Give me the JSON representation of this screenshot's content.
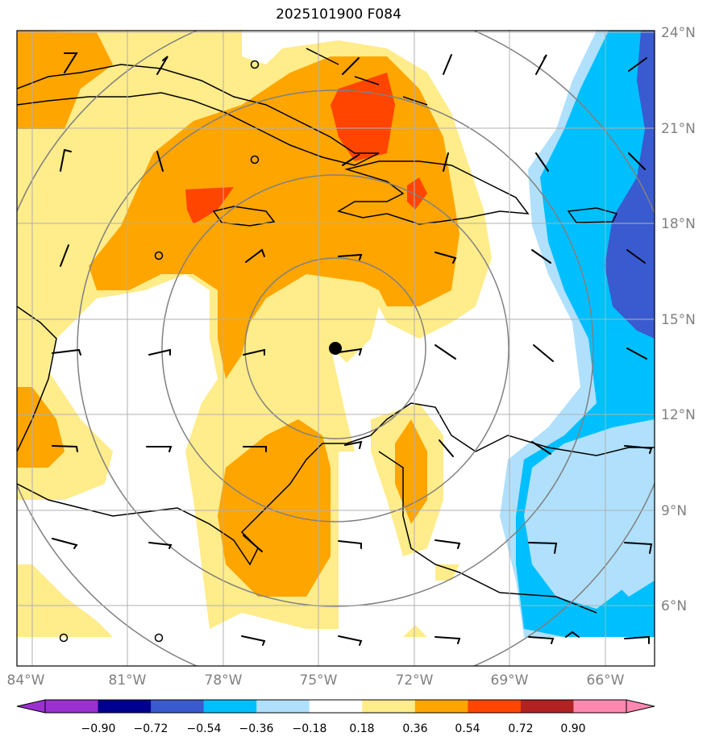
{
  "title": "2025101900 F084",
  "lon_labels": [
    "84°W",
    "81°W",
    "78°W",
    "75°W",
    "72°W",
    "69°W",
    "66°W"
  ],
  "lat_labels": [
    "24°N",
    "21°N",
    "18°N",
    "15°N",
    "12°N",
    "9°N",
    "6°N"
  ],
  "colorbar": {
    "ticks": [
      "−0.90",
      "−0.72",
      "−0.54",
      "−0.36",
      "−0.18",
      "0.18",
      "0.36",
      "0.54",
      "0.72",
      "0.90"
    ],
    "colors": [
      "#9b30d0",
      "#000090",
      "#3a5ad0",
      "#00bfff",
      "#b0e0fc",
      "#ffffff",
      "#ffec8a",
      "#ffa500",
      "#ff4500",
      "#b22222",
      "#ff88b0"
    ]
  },
  "fill_colors": {
    "light_yellow": "#ffec8a",
    "orange": "#ffa500",
    "red_orange": "#ff4500",
    "light_blue": "#b0e0fc",
    "sky_blue": "#00bfff",
    "royal_blue": "#3a5ad0"
  },
  "storm_center_marker": "black-dot",
  "range_rings": "gray-concentric-circles",
  "wind_barbs": "black-barbs"
}
